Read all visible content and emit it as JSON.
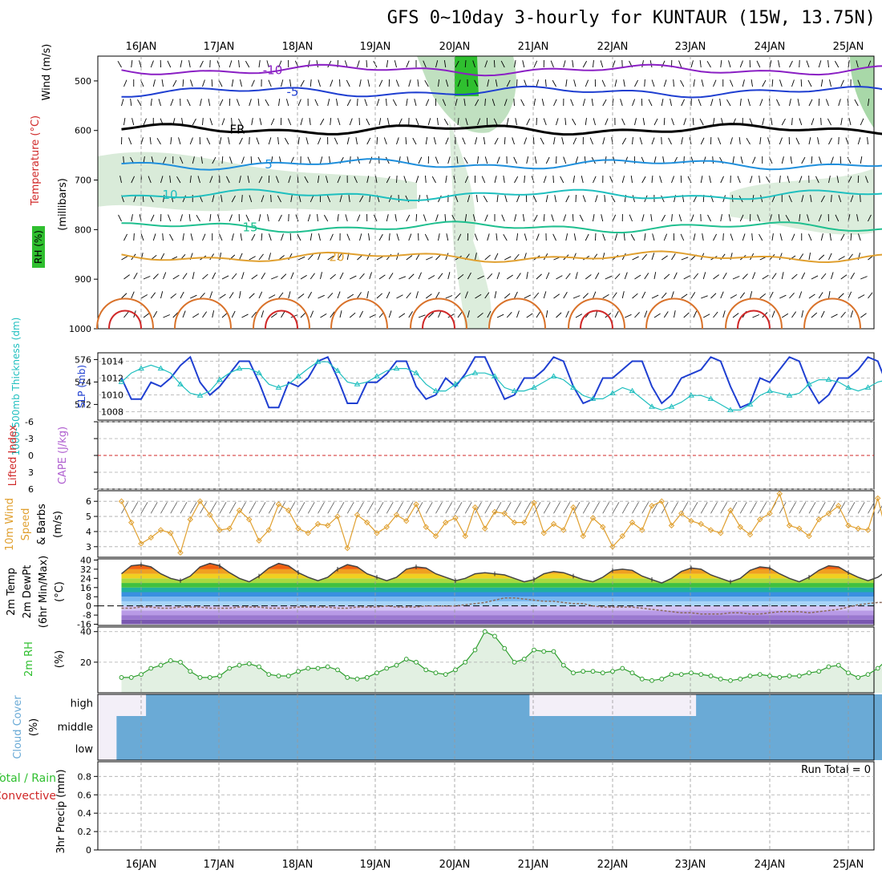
{
  "title": "GFS 0~10day 3-hourly for KUNTAUR (15W, 13.75N)",
  "days": [
    "16JAN",
    "17JAN",
    "18JAN",
    "19JAN",
    "20JAN",
    "21JAN",
    "22JAN",
    "23JAN",
    "24JAN",
    "25JAN"
  ],
  "colors": {
    "purple": "#8a1fc4",
    "blue": "#1f3fd1",
    "sky": "#1f8fdc",
    "cyan": "#1fbfbf",
    "teal": "#1fbf8f",
    "orange": "#e0a030",
    "darkorange": "#d9722a",
    "red": "#d02828",
    "green": "#2fbf2f",
    "cloud": "#6aaad6"
  },
  "chart_data": [
    {
      "panel": "upper-air",
      "type": "contour",
      "ylabel_wind": "Wind (m/s)",
      "ylabel_temp": "Temperature (°C)",
      "ylabel_rh": "RH (%)",
      "ylabel_units": "(millibars)",
      "ylim": [
        1000,
        450
      ],
      "yticks": [
        500,
        600,
        700,
        800,
        900,
        1000
      ],
      "yticklabels": [
        "500",
        "600",
        "700",
        "800",
        "900",
        "1000"
      ],
      "isotherms": [
        {
          "label": "-10",
          "level": 478,
          "color": "purple"
        },
        {
          "label": "-5",
          "level": 522,
          "color": "blue"
        },
        {
          "label": "FR",
          "level": 598,
          "color": "black"
        },
        {
          "label": "5",
          "level": 668,
          "color": "sky"
        },
        {
          "label": "10",
          "level": 730,
          "color": "cyan"
        },
        {
          "label": "15",
          "level": 795,
          "color": "teal"
        },
        {
          "label": "20",
          "level": 855,
          "color": "orange"
        }
      ],
      "contour_labels": [
        "-10",
        "-5",
        "FR",
        "5",
        "10",
        "15",
        "20",
        "10",
        "30",
        "30",
        "10"
      ]
    },
    {
      "panel": "slp-thickness",
      "type": "line",
      "ylabel_left": "1000-500mb Thickness (dm)",
      "ylabel_right": "SLP (mb)",
      "yticks_left": [
        572,
        574,
        576
      ],
      "yticks_right": [
        1008,
        1010,
        1012,
        1014
      ],
      "ylim_right": [
        1007,
        1015
      ],
      "ylim_left": [
        570.6,
        576.6
      ],
      "series": [
        {
          "name": "SLP",
          "axis": "right",
          "color": "#1f3fd1",
          "values": [
            1012,
            1009.5,
            1009.5,
            1011.5,
            1011,
            1012,
            1013.5,
            1014.5,
            1011.5,
            1010,
            1011,
            1012.5,
            1014,
            1014,
            1011.5,
            1008.5,
            1008.5,
            1011.5,
            1011,
            1012,
            1014,
            1014.5,
            1012,
            1009,
            1009,
            1011.5,
            1011.5,
            1012.5,
            1014,
            1014,
            1011,
            1009.5,
            1010,
            1012,
            1011,
            1012.5,
            1014.5,
            1014.5,
            1012,
            1009.5,
            1010,
            1012,
            1012,
            1013,
            1014.5,
            1014,
            1011,
            1009,
            1009.5,
            1012,
            1012,
            1013,
            1014,
            1014,
            1011,
            1009,
            1010,
            1012,
            1012.5,
            1013,
            1014.5,
            1014,
            1011,
            1008.5,
            1009,
            1012,
            1011.5,
            1013,
            1014.5,
            1014,
            1011,
            1009,
            1010,
            1012,
            1012,
            1013,
            1014.5,
            1014,
            1011,
            1009.5,
            1012
          ]
        },
        {
          "name": "Thickness",
          "axis": "left",
          "color": "#1fbfbf",
          "values": [
            574,
            574.8,
            575.2,
            575.5,
            575.2,
            574.8,
            573.8,
            573,
            572.8,
            573.2,
            574.2,
            574.8,
            575.2,
            575.2,
            574.8,
            573.8,
            573.5,
            573.8,
            574.5,
            575.2,
            575.8,
            575.8,
            575,
            574,
            573.8,
            574,
            574.5,
            575,
            575.2,
            575.2,
            574.8,
            573.8,
            573.2,
            573.2,
            573.8,
            574.5,
            574.8,
            574.8,
            574.5,
            573.5,
            573.2,
            573.2,
            573.5,
            574,
            574.5,
            574.2,
            573.5,
            572.8,
            572.5,
            572.5,
            573,
            573.5,
            573.2,
            572.5,
            571.8,
            571.5,
            571.8,
            572.2,
            572.8,
            572.8,
            572.5,
            572,
            571.5,
            571.5,
            572,
            572.8,
            573.2,
            573,
            572.8,
            573,
            573.8,
            574.2,
            574.2,
            574,
            573.5,
            573.2,
            573.5,
            574,
            574.2,
            573.8,
            573
          ]
        }
      ]
    },
    {
      "panel": "stability",
      "type": "line",
      "ylabel_left": "Lifted Index",
      "ylabel_right": "CAPE (J/kg)",
      "ylim": [
        6,
        -6
      ],
      "yticks": [
        -6,
        -3,
        0,
        3,
        6
      ],
      "yticklabels": [
        "-6",
        "-3",
        "0",
        "3",
        "6"
      ],
      "series": []
    },
    {
      "panel": "10m-wind",
      "type": "line",
      "ylabel": "10m Wind Speed & Barbs (m/s)",
      "ylabel_l1": "10m Wind",
      "ylabel_l2": "Speed",
      "ylabel_l3": "& Barbs",
      "ylabel_l4": "(m/s)",
      "ylim": [
        2.3,
        6.7
      ],
      "yticks": [
        3,
        4,
        5,
        6
      ],
      "series": [
        {
          "name": "Wind speed",
          "color": "#e0a030",
          "values": [
            6,
            4.6,
            3.2,
            3.6,
            4.1,
            3.9,
            2.6,
            4.8,
            6,
            5.1,
            4.1,
            4.2,
            5.4,
            4.8,
            3.4,
            4.1,
            5.8,
            5.4,
            4.2,
            3.9,
            4.5,
            4.4,
            5,
            2.9,
            5.1,
            4.6,
            3.9,
            4.3,
            5.1,
            4.7,
            5.8,
            4.3,
            3.7,
            4.6,
            4.9,
            3.7,
            5.6,
            4.2,
            5.3,
            5.2,
            4.6,
            4.6,
            5.9,
            3.9,
            4.5,
            4.1,
            5.6,
            3.7,
            4.9,
            4.3,
            3,
            3.7,
            4.6,
            4.1,
            5.7,
            6,
            4.4,
            5.2,
            4.7,
            4.5,
            4.1,
            3.9,
            5.4,
            4.3,
            3.8,
            4.8,
            5.2,
            6.5,
            4.4,
            4.2,
            3.7,
            4.8,
            5.2,
            5.7,
            4.4,
            4.2,
            4.1,
            6.2,
            3.6,
            4.1,
            4.3
          ]
        }
      ]
    },
    {
      "panel": "2m-temp",
      "type": "line",
      "ylabel_l1": "2m Temp",
      "ylabel_l2": "2m DewPt",
      "ylabel_l3": "(6hr Min/Max)",
      "ylabel_l4": "(°C)",
      "ylim": [
        -17,
        41
      ],
      "yticks": [
        -16,
        -8,
        0,
        8,
        16,
        24,
        32,
        40
      ],
      "yticklabels": [
        "-16",
        "-8",
        "0",
        "8",
        "16",
        "24",
        "32",
        "40"
      ],
      "series": [
        {
          "name": "2m Temp",
          "color": "#444444",
          "values": [
            28,
            35,
            36,
            34,
            28,
            24,
            22,
            26,
            34,
            37,
            35,
            29,
            24,
            21,
            26,
            33,
            37,
            35,
            29,
            25,
            22,
            25,
            32,
            36,
            34,
            28,
            25,
            22,
            25,
            32,
            34,
            33,
            28,
            25,
            22,
            24,
            28,
            29,
            28,
            27,
            24,
            21,
            23,
            28,
            30,
            29,
            26,
            23,
            21,
            25,
            31,
            32,
            31,
            26,
            23,
            20,
            24,
            30,
            33,
            32,
            27,
            24,
            21,
            24,
            31,
            34,
            33,
            28,
            24,
            21,
            25,
            31,
            35,
            34,
            29,
            25,
            22,
            25,
            31,
            34,
            33
          ]
        },
        {
          "name": "2m DewPt",
          "color": "#8a6a5a",
          "values": [
            -2,
            -2,
            -1,
            -1,
            -2,
            -2,
            -1,
            -1,
            -1,
            -2,
            -2,
            -2,
            -1,
            -1,
            -1,
            -2,
            -2,
            -2,
            -1,
            -1,
            -1,
            -1,
            -2,
            -2,
            -1,
            -1,
            -1,
            0,
            -1,
            -1,
            -1,
            0,
            0,
            0,
            0,
            1,
            2,
            3,
            5,
            7,
            7,
            6,
            5,
            4,
            4,
            3,
            2,
            2,
            0,
            -1,
            -1,
            -1,
            -1,
            -2,
            -3,
            -4,
            -5,
            -6,
            -6,
            -7,
            -7,
            -7,
            -6,
            -6,
            -7,
            -7,
            -6,
            -5,
            -5,
            -5,
            -6,
            -5,
            -4,
            -3,
            -1,
            1,
            2,
            3,
            3,
            2,
            2
          ]
        }
      ]
    },
    {
      "panel": "2m-rh",
      "type": "area",
      "ylabel": "2m RH",
      "yunit": "(%)",
      "ylim": [
        0,
        43
      ],
      "yticks": [
        20,
        40
      ],
      "series": [
        {
          "name": "2m RH",
          "color": "#2f9f2f",
          "values": [
            10,
            10,
            12,
            16,
            18,
            21,
            20,
            14,
            10,
            10,
            11,
            16,
            18,
            19,
            17,
            12,
            11,
            11,
            14,
            16,
            16,
            17,
            15,
            10,
            9,
            10,
            13,
            16,
            18,
            22,
            20,
            15,
            13,
            12,
            15,
            20,
            28,
            40,
            37,
            29,
            20,
            22,
            28,
            27,
            27,
            18,
            13,
            14,
            14,
            13,
            14,
            16,
            13,
            9,
            8,
            9,
            12,
            12,
            13,
            12,
            11,
            9,
            8,
            9,
            11,
            12,
            11,
            10,
            11,
            11,
            13,
            14,
            17,
            18,
            13,
            10,
            12,
            16,
            22,
            23,
            26
          ]
        }
      ]
    },
    {
      "panel": "cloud-cover",
      "type": "area",
      "ylabel": "Cloud Cover (%)",
      "ylabel_l1": "Cloud Cover",
      "ylabel_l2": "(%)",
      "levels": [
        "high",
        "middle",
        "low"
      ],
      "series": [
        {
          "name": "high",
          "values": [
            0,
            0,
            0,
            100,
            100,
            100,
            100,
            100,
            100,
            100,
            100,
            100,
            100,
            100,
            100,
            100,
            100,
            100,
            100,
            100,
            100,
            100,
            100,
            100,
            100,
            100,
            100,
            100,
            100,
            100,
            100,
            100,
            100,
            100,
            100,
            100,
            100,
            100,
            100,
            100,
            100,
            100,
            0,
            0,
            0,
            0,
            0,
            0,
            0,
            0,
            0,
            0,
            0,
            0,
            0,
            0,
            0,
            0,
            0,
            100,
            100,
            100,
            100,
            100,
            100,
            100,
            100,
            100,
            100,
            100,
            100,
            100,
            100,
            100,
            100,
            100,
            100,
            100,
            100,
            100,
            100
          ]
        },
        {
          "name": "middle",
          "values": [
            100,
            100,
            100,
            100,
            100,
            100,
            100,
            100,
            100,
            100,
            100,
            100,
            100,
            100,
            100,
            100,
            100,
            100,
            100,
            100,
            100,
            100,
            100,
            100,
            100,
            100,
            100,
            100,
            100,
            100,
            100,
            100,
            100,
            100,
            100,
            100,
            100,
            100,
            100,
            100,
            100,
            100,
            100,
            100,
            100,
            100,
            100,
            100,
            100,
            100,
            100,
            100,
            100,
            100,
            100,
            100,
            100,
            100,
            100,
            100,
            100,
            100,
            100,
            100,
            100,
            100,
            100,
            100,
            100,
            100,
            100,
            100,
            100,
            100,
            100,
            100,
            100,
            100,
            100,
            100,
            100
          ]
        },
        {
          "name": "low",
          "values": [
            100,
            100,
            100,
            100,
            100,
            100,
            100,
            100,
            100,
            100,
            100,
            100,
            100,
            100,
            100,
            100,
            100,
            100,
            100,
            100,
            100,
            100,
            100,
            100,
            100,
            100,
            100,
            100,
            100,
            100,
            100,
            100,
            100,
            100,
            100,
            100,
            100,
            100,
            100,
            100,
            100,
            100,
            100,
            100,
            100,
            100,
            100,
            100,
            100,
            100,
            100,
            100,
            100,
            100,
            100,
            100,
            100,
            100,
            100,
            100,
            100,
            100,
            100,
            100,
            100,
            100,
            100,
            100,
            100,
            100,
            100,
            100,
            100,
            100,
            100,
            100,
            100,
            100,
            100,
            100,
            100
          ]
        }
      ]
    },
    {
      "panel": "precip",
      "type": "bar",
      "ylabel_l1": "Total / Rain",
      "ylabel_l2": "Convective",
      "ylabel_l3": "3hr Precip (mm)",
      "ylim": [
        0,
        0.96
      ],
      "yticks": [
        0,
        0.2,
        0.4,
        0.6,
        0.8
      ],
      "yticklabels": [
        "0",
        "0.2",
        "0.4",
        "0.6",
        "0.8"
      ],
      "run_total": "Run Total = 0",
      "values": []
    }
  ]
}
